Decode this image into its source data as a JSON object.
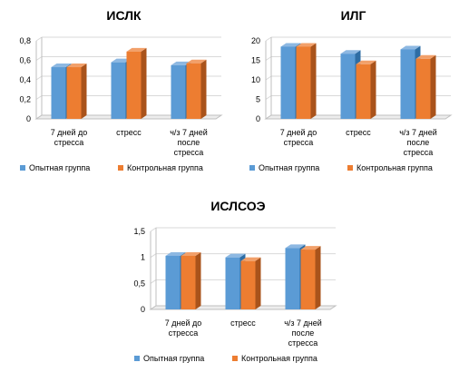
{
  "chart_data": [
    {
      "type": "bar",
      "title": "ИСЛК",
      "categories": [
        "7 дней до стресса",
        "стресс",
        "ч/з 7 дней после стресса"
      ],
      "category_lines": [
        [
          "7 дней до",
          "стресса"
        ],
        [
          "стресс"
        ],
        [
          "ч/з 7 дней",
          "после",
          "стресса"
        ]
      ],
      "ylim": [
        0,
        0.8
      ],
      "yticks": [
        "0",
        "0,2",
        "0,4",
        "0,6",
        "0,8"
      ],
      "series": [
        {
          "name": "Опытная группа",
          "values": [
            0.53,
            0.58,
            0.55
          ]
        },
        {
          "name": "Контрольная группа",
          "values": [
            0.53,
            0.69,
            0.57
          ]
        }
      ],
      "grid": true,
      "legend": "bottom"
    },
    {
      "type": "bar",
      "title": "ИЛГ",
      "categories": [
        "7 дней до стресса",
        "стресс",
        "ч/з 7 дней после стресса"
      ],
      "category_lines": [
        [
          "7 дней до",
          "стресса"
        ],
        [
          "стресс"
        ],
        [
          "ч/з 7 дней",
          "после",
          "стресса"
        ]
      ],
      "ylim": [
        0,
        20
      ],
      "yticks": [
        "0",
        "5",
        "10",
        "15",
        "20"
      ],
      "series": [
        {
          "name": "Опытная группа",
          "values": [
            18.5,
            16.7,
            17.8
          ]
        },
        {
          "name": "Контрольная группа",
          "values": [
            18.5,
            14.0,
            15.4
          ]
        }
      ],
      "grid": true,
      "legend": "bottom"
    },
    {
      "type": "bar",
      "title": "ИСЛСОЭ",
      "categories": [
        "7 дней до стресса",
        "стресс",
        "ч/з 7 дней после стресса"
      ],
      "category_lines": [
        [
          "7 дней до",
          "стресса"
        ],
        [
          "стресс"
        ],
        [
          "ч/з 7 дней",
          "после",
          "стресса"
        ]
      ],
      "ylim": [
        0,
        1.5
      ],
      "yticks": [
        "0",
        "0,5",
        "1",
        "1,5"
      ],
      "series": [
        {
          "name": "Опытная группа",
          "values": [
            1.03,
            1.0,
            1.18
          ]
        },
        {
          "name": "Контрольная группа",
          "values": [
            1.03,
            0.93,
            1.15
          ]
        }
      ],
      "grid": true,
      "legend": "bottom"
    }
  ],
  "colors": {
    "series_front": [
      "#5B9BD5",
      "#ED7D31"
    ],
    "series_side": [
      "#2E6DA4",
      "#A9531B"
    ],
    "series_top": [
      "#8DB8E2",
      "#F2A06A"
    ],
    "grid": "#D9D9D9",
    "wall": "#BFBFBF",
    "floor": "#BFBFBF"
  }
}
